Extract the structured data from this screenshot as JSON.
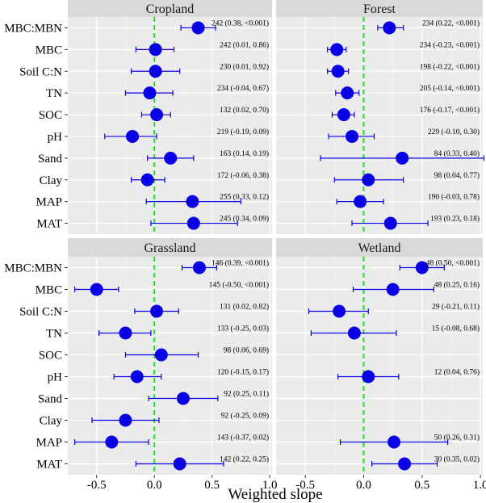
{
  "chart_data": {
    "type": "scatter",
    "subtype": "faceted forest plot",
    "xlabel": "Weighted slope",
    "ylabel": "",
    "xlim": [
      -0.75,
      1.02
    ],
    "x_ticks": [
      "-0.5",
      "0.0",
      "0.5",
      "1.0"
    ],
    "x_tick_values": [
      -0.5,
      0.0,
      0.5,
      1.0
    ],
    "reference_line": {
      "x": 0,
      "style": "dashed",
      "color": "#22dd22"
    },
    "point_color": "#0a00e6",
    "grid": true,
    "variables": [
      "MBC:MBN",
      "MBC",
      "Soil C:N",
      "TN",
      "SOC",
      "pH",
      "Sand",
      "Clay",
      "MAP",
      "MAT"
    ],
    "facets": [
      {
        "name": "Cropland",
        "rows": [
          {
            "var": "MBC:MBN",
            "slope": 0.38,
            "lo": 0.23,
            "hi": 0.53,
            "label": "242 (0.38, <0.001)"
          },
          {
            "var": "MBC",
            "slope": 0.01,
            "lo": -0.16,
            "hi": 0.17,
            "label": "242 (0.01, 0.86)"
          },
          {
            "var": "Soil C:N",
            "slope": 0.01,
            "lo": -0.2,
            "hi": 0.22,
            "label": "230 (0.01, 0.92)"
          },
          {
            "var": "TN",
            "slope": -0.04,
            "lo": -0.25,
            "hi": 0.16,
            "label": "234 (-0.04, 0.67)"
          },
          {
            "var": "SOC",
            "slope": 0.02,
            "lo": -0.11,
            "hi": 0.14,
            "label": "132 (0.02, 0.70)"
          },
          {
            "var": "pH",
            "slope": -0.19,
            "lo": -0.43,
            "hi": 0.02,
            "label": "219 (-0.19, 0.09)"
          },
          {
            "var": "Sand",
            "slope": 0.14,
            "lo": -0.06,
            "hi": 0.34,
            "label": "163 (0.14, 0.19)"
          },
          {
            "var": "Clay",
            "slope": -0.06,
            "lo": -0.2,
            "hi": 0.09,
            "label": "172 (-0.06, 0.38)"
          },
          {
            "var": "MAP",
            "slope": 0.33,
            "lo": -0.07,
            "hi": 0.75,
            "label": "255 (0.33, 0.12)"
          },
          {
            "var": "MAT",
            "slope": 0.34,
            "lo": -0.03,
            "hi": 0.72,
            "label": "245 (0.34, 0.09)"
          }
        ]
      },
      {
        "name": "Forest",
        "rows": [
          {
            "var": "MBC:MBN",
            "slope": 0.22,
            "lo": 0.12,
            "hi": 0.34,
            "label": "234 (0.22, <0.001)"
          },
          {
            "var": "MBC",
            "slope": -0.23,
            "lo": -0.31,
            "hi": -0.15,
            "label": "234 (-0.23, <0.001)"
          },
          {
            "var": "Soil C:N",
            "slope": -0.22,
            "lo": -0.31,
            "hi": -0.13,
            "label": "198 (-0.22, <0.001)"
          },
          {
            "var": "TN",
            "slope": -0.14,
            "lo": -0.24,
            "hi": -0.04,
            "label": "205 (-0.14, <0.001)"
          },
          {
            "var": "SOC",
            "slope": -0.17,
            "lo": -0.27,
            "hi": -0.08,
            "label": "176 (-0.17, <0.001)"
          },
          {
            "var": "pH",
            "slope": -0.1,
            "lo": -0.3,
            "hi": 0.09,
            "label": "229 (-0.10, 0.30)"
          },
          {
            "var": "Sand",
            "slope": 0.33,
            "lo": -0.37,
            "hi": 1.03,
            "label": "84 (0.33, 0.40)"
          },
          {
            "var": "Clay",
            "slope": 0.04,
            "lo": -0.25,
            "hi": 0.34,
            "label": "98 (0.04, 0.77)"
          },
          {
            "var": "MAP",
            "slope": -0.03,
            "lo": -0.23,
            "hi": 0.17,
            "label": "190 (-0.03, 0.78)"
          },
          {
            "var": "MAT",
            "slope": 0.23,
            "lo": -0.1,
            "hi": 0.55,
            "label": "193 (0.23, 0.18)"
          }
        ]
      },
      {
        "name": "Grassland",
        "rows": [
          {
            "var": "MBC:MBN",
            "slope": 0.39,
            "lo": 0.24,
            "hi": 0.54,
            "label": "146 (0.39, <0.001)"
          },
          {
            "var": "MBC",
            "slope": -0.5,
            "lo": -0.69,
            "hi": -0.31,
            "label": "145 (-0.50, <0.001)"
          },
          {
            "var": "Soil C:N",
            "slope": 0.02,
            "lo": -0.17,
            "hi": 0.21,
            "label": "131 (0.02, 0.82)"
          },
          {
            "var": "TN",
            "slope": -0.25,
            "lo": -0.48,
            "hi": -0.03,
            "label": "133 (-0.25, 0.03)"
          },
          {
            "var": "SOC",
            "slope": 0.06,
            "lo": -0.25,
            "hi": 0.38,
            "label": "98 (0.06, 0.69)"
          },
          {
            "var": "pH",
            "slope": -0.15,
            "lo": -0.35,
            "hi": 0.06,
            "label": "120 (-0.15, 0.17)"
          },
          {
            "var": "Sand",
            "slope": 0.25,
            "lo": -0.05,
            "hi": 0.55,
            "label": "92 (0.25, 0.11)"
          },
          {
            "var": "Clay",
            "slope": -0.25,
            "lo": -0.54,
            "hi": 0.04,
            "label": "92 (-0.25, 0.09)"
          },
          {
            "var": "MAP",
            "slope": -0.37,
            "lo": -0.69,
            "hi": -0.05,
            "label": "143 (-0.37, 0.02)"
          },
          {
            "var": "MAT",
            "slope": 0.22,
            "lo": -0.16,
            "hi": 0.6,
            "label": "142 (0.22, 0.25)"
          }
        ]
      },
      {
        "name": "Wetland",
        "rows": [
          {
            "var": "MBC:MBN",
            "slope": 0.5,
            "lo": 0.31,
            "hi": 0.69,
            "label": "48 (0.50, <0.001)"
          },
          {
            "var": "MBC",
            "slope": 0.25,
            "lo": -0.09,
            "hi": 0.6,
            "label": "48 (0.25, 0.16)"
          },
          {
            "var": "Soil C:N",
            "slope": -0.21,
            "lo": -0.47,
            "hi": 0.04,
            "label": "29 (-0.21, 0.11)"
          },
          {
            "var": "TN",
            "slope": -0.08,
            "lo": -0.45,
            "hi": 0.28,
            "label": "15 (-0.08, 0.68)"
          },
          {
            "var": "SOC",
            "slope": null,
            "lo": null,
            "hi": null,
            "label": null
          },
          {
            "var": "pH",
            "slope": 0.04,
            "lo": -0.22,
            "hi": 0.3,
            "label": "12 (0.04, 0.76)"
          },
          {
            "var": "Sand",
            "slope": null,
            "lo": null,
            "hi": null,
            "label": null
          },
          {
            "var": "Clay",
            "slope": null,
            "lo": null,
            "hi": null,
            "label": null
          },
          {
            "var": "MAP",
            "slope": 0.26,
            "lo": -0.2,
            "hi": 0.72,
            "label": "50 (0.26, 0.31)"
          },
          {
            "var": "MAT",
            "slope": 0.35,
            "lo": 0.07,
            "hi": 0.63,
            "label": "30 (0.35, 0.02)"
          }
        ]
      }
    ]
  }
}
